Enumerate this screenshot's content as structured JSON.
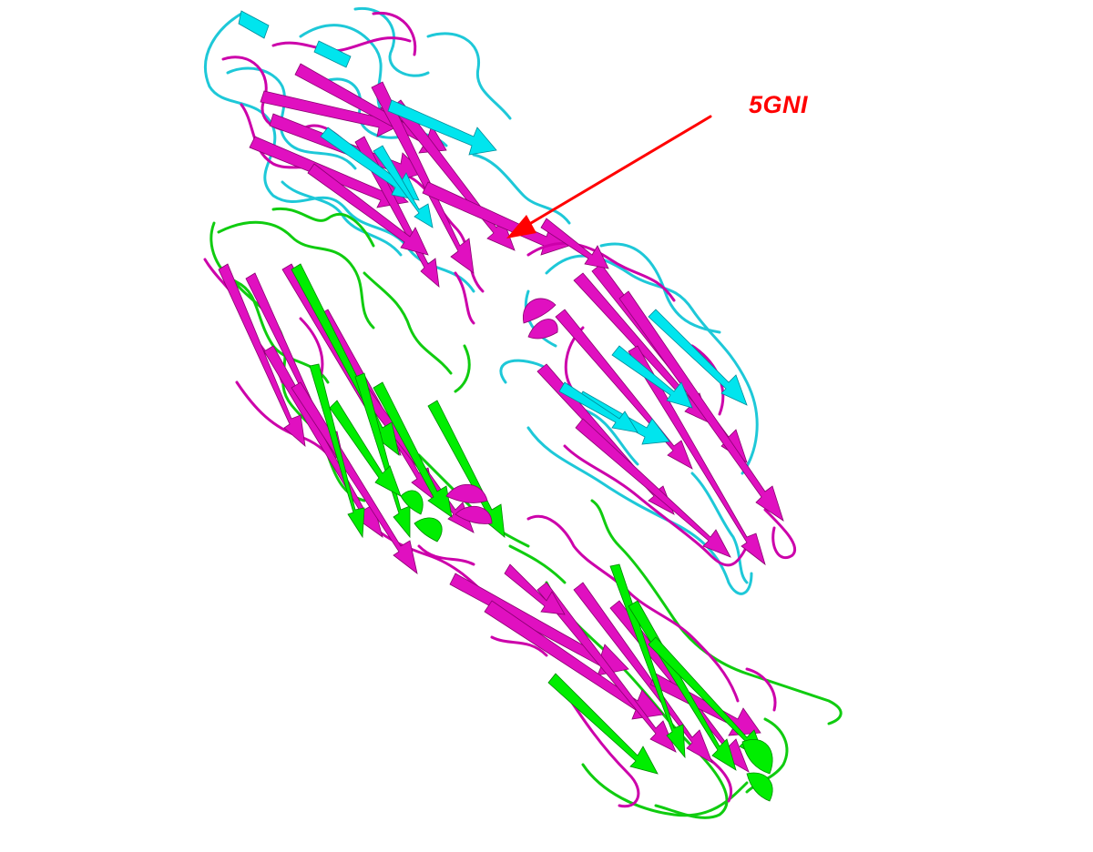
{
  "annotation": {
    "label": "5GNI",
    "color": "#ff0000"
  },
  "structure": {
    "chains": [
      {
        "name": "cyan",
        "color": "#00e5ee",
        "loop_color": "#1ec8d8"
      },
      {
        "name": "magenta",
        "color": "#e010c0",
        "loop_color": "#cc00aa"
      },
      {
        "name": "green",
        "color": "#00ee00",
        "loop_color": "#10cc10"
      }
    ]
  }
}
